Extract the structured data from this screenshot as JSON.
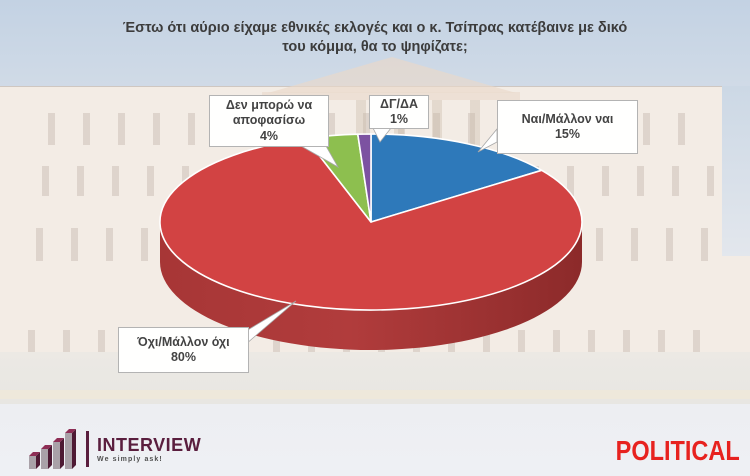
{
  "title": {
    "line1": "Έστω ότι αύριο είχαμε εθνικές εκλογές και ο κ. Τσίπρας κατέβαινε με δικό",
    "line2": "του κόμμα, θα το ψηφίζατε;"
  },
  "chart_data": {
    "type": "pie",
    "projection": "3d",
    "title": "Έστω ότι αύριο είχαμε εθνικές εκλογές και ο κ. Τσίπρας κατέβαινε με δικό του κόμμα, θα το ψηφίζατε;",
    "labels": [
      "Ναι/Μάλλον ναι",
      "Όχι/Μάλλον όχι",
      "Δεν μπορώ να αποφασίσω",
      "ΔΓ/ΔΑ"
    ],
    "values": [
      15,
      80,
      4,
      1
    ],
    "colors": [
      "#2e79ba",
      "#d24343",
      "#8dbf4f",
      "#7c52a1"
    ],
    "side_color": "#a23333",
    "start_angle_deg": 90,
    "direction": "clockwise",
    "legend_position": "callout-labels"
  },
  "callouts": {
    "yes": {
      "line1": "Ναι/Μάλλον ναι",
      "line2": "15%"
    },
    "no": {
      "line1": "Όχι/Μάλλον όχι",
      "line2": "80%"
    },
    "undecided": {
      "line1": "Δεν μπορώ να",
      "line2": "αποφασίσω",
      "line3": "4%"
    },
    "dkda": {
      "line1": "ΔΓ/ΔΑ",
      "line2": "1%"
    }
  },
  "footer": {
    "interview_name": "INTERVIEW",
    "interview_tagline": "We simply ask!",
    "political_name": "POLITICAL",
    "political_color": "#e7221f",
    "interview_color": "#5a1e3e"
  }
}
